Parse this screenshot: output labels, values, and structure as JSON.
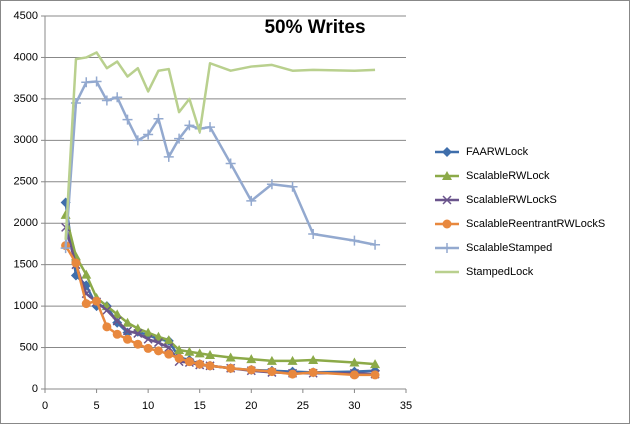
{
  "chart_data": {
    "type": "line",
    "title": "50% Writes",
    "x": [
      2,
      3,
      4,
      5,
      6,
      7,
      8,
      9,
      10,
      11,
      12,
      13,
      14,
      15,
      16,
      18,
      20,
      22,
      24,
      26,
      30,
      32
    ],
    "xlim": [
      0,
      35
    ],
    "xticks": [
      0,
      5,
      10,
      15,
      20,
      25,
      30,
      35
    ],
    "ylim": [
      0,
      4500
    ],
    "yticks": [
      0,
      500,
      1000,
      1500,
      2000,
      2500,
      3000,
      3500,
      4000,
      4500
    ],
    "grid": true,
    "legend": "right",
    "series": [
      {
        "name": "FAARWLock",
        "color": "#3f6eab",
        "marker": "diamond",
        "values": [
          2250,
          1370,
          1250,
          1000,
          1000,
          800,
          680,
          690,
          650,
          600,
          580,
          380,
          350,
          300,
          280,
          250,
          230,
          220,
          210,
          200,
          210,
          220
        ]
      },
      {
        "name": "ScalableRWLock",
        "color": "#8caa48",
        "marker": "triangle",
        "values": [
          2100,
          1600,
          1380,
          1100,
          1000,
          900,
          800,
          730,
          680,
          630,
          590,
          470,
          450,
          430,
          410,
          380,
          360,
          340,
          340,
          350,
          320,
          300
        ]
      },
      {
        "name": "ScalableRWLockS",
        "color": "#6a548c",
        "marker": "x",
        "values": [
          1950,
          1500,
          1150,
          1050,
          950,
          820,
          700,
          670,
          600,
          560,
          500,
          330,
          320,
          290,
          280,
          250,
          220,
          200,
          190,
          190,
          190,
          180
        ]
      },
      {
        "name": "ScalableReentrantRWLockS",
        "color": "#e8883e",
        "marker": "circle",
        "values": [
          1730,
          1520,
          1030,
          1060,
          750,
          660,
          600,
          540,
          490,
          460,
          420,
          370,
          330,
          300,
          280,
          250,
          230,
          210,
          180,
          200,
          170,
          170
        ]
      },
      {
        "name": "ScalableStamped",
        "color": "#93a9cf",
        "marker": "plus",
        "values": [
          1700,
          3450,
          3700,
          3710,
          3480,
          3520,
          3250,
          3000,
          3070,
          3260,
          2800,
          3020,
          3180,
          3140,
          3160,
          2720,
          2270,
          2470,
          2440,
          1870,
          1790,
          1740
        ]
      },
      {
        "name": "StampedLock",
        "color": "#b9d08e",
        "marker": "none",
        "values": [
          1800,
          3980,
          4000,
          4060,
          3870,
          3950,
          3770,
          3870,
          3590,
          3840,
          3860,
          3340,
          3500,
          3100,
          3930,
          3840,
          3890,
          3910,
          3840,
          3850,
          3840,
          3850
        ]
      }
    ]
  }
}
